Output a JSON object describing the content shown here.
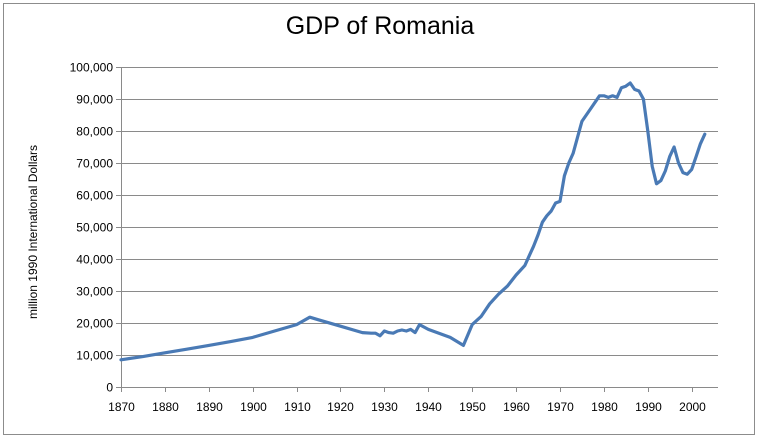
{
  "chart_data": {
    "type": "line",
    "title": "GDP of Romania",
    "xlabel": "",
    "ylabel": "million 1990 International Dollars",
    "xlim": [
      1870,
      2006
    ],
    "ylim": [
      0,
      100000
    ],
    "x_ticks": [
      "1870",
      "1880",
      "1890",
      "1900",
      "1910",
      "1920",
      "1930",
      "1940",
      "1950",
      "1960",
      "1970",
      "1980",
      "1990",
      "2000"
    ],
    "y_ticks": [
      "0",
      "10,000",
      "20,000",
      "30,000",
      "40,000",
      "50,000",
      "60,000",
      "70,000",
      "80,000",
      "90,000",
      "100,000"
    ],
    "grid": "horizontal",
    "legend": "none",
    "series_color": "#4a7ab5",
    "series": [
      {
        "x": [
          1870,
          1875,
          1880,
          1885,
          1890,
          1895,
          1900,
          1905,
          1910,
          1913,
          1915,
          1920,
          1925,
          1927,
          1928,
          1929,
          1930,
          1931,
          1932,
          1933,
          1934,
          1935,
          1936,
          1937,
          1938,
          1940,
          1945,
          1948,
          1950,
          1952,
          1954,
          1956,
          1958,
          1960,
          1962,
          1963,
          1964,
          1965,
          1966,
          1967,
          1968,
          1969,
          1970,
          1971,
          1972,
          1973,
          1975,
          1977,
          1979,
          1980,
          1981,
          1982,
          1983,
          1984,
          1985,
          1986,
          1987,
          1988,
          1989,
          1990,
          1991,
          1992,
          1993,
          1994,
          1995,
          1996,
          1997,
          1998,
          1999,
          2000,
          2001,
          2002,
          2003
        ],
        "y": [
          8500,
          9500,
          10700,
          11800,
          13000,
          14200,
          15500,
          17500,
          19500,
          21800,
          21000,
          19000,
          17000,
          16800,
          16800,
          16000,
          17500,
          17000,
          16800,
          17500,
          17800,
          17500,
          18000,
          17000,
          19500,
          18000,
          15500,
          13000,
          19500,
          22000,
          26000,
          29000,
          31500,
          35000,
          38000,
          41000,
          44000,
          47500,
          51500,
          53500,
          55000,
          57500,
          58000,
          66000,
          70000,
          73000,
          83000,
          87000,
          91000,
          91000,
          90500,
          91000,
          90500,
          93500,
          94000,
          95000,
          93000,
          92500,
          90000,
          80000,
          69000,
          63500,
          64500,
          67500,
          72000,
          75000,
          70000,
          67000,
          66500,
          68000,
          72000,
          76000,
          79000
        ]
      }
    ]
  }
}
